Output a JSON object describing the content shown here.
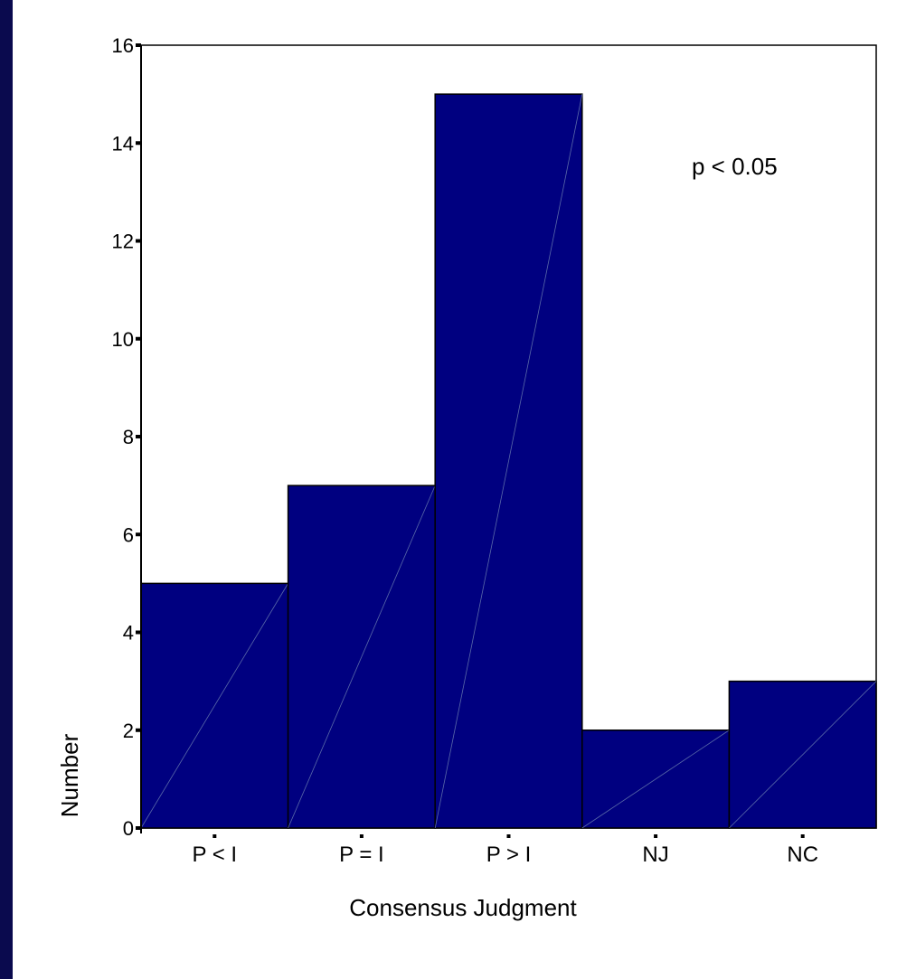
{
  "colors": {
    "slide_background": "#0a0a4e",
    "panel_background": "#ffffff",
    "bar_fill": "#000080",
    "bar_stroke": "#000000",
    "axis": "#000000"
  },
  "chart_data": {
    "type": "bar",
    "categories": [
      "P < I",
      "P = I",
      "P > I",
      "NJ",
      "NC"
    ],
    "values": [
      5,
      7,
      15,
      2,
      3
    ],
    "title": "",
    "xlabel": "Consensus Judgment",
    "ylabel": "Number",
    "ylim": [
      0,
      16
    ],
    "yticks": [
      0,
      2,
      4,
      6,
      8,
      10,
      12,
      14,
      16
    ],
    "grid": false,
    "annotation": "p < 0.05"
  }
}
